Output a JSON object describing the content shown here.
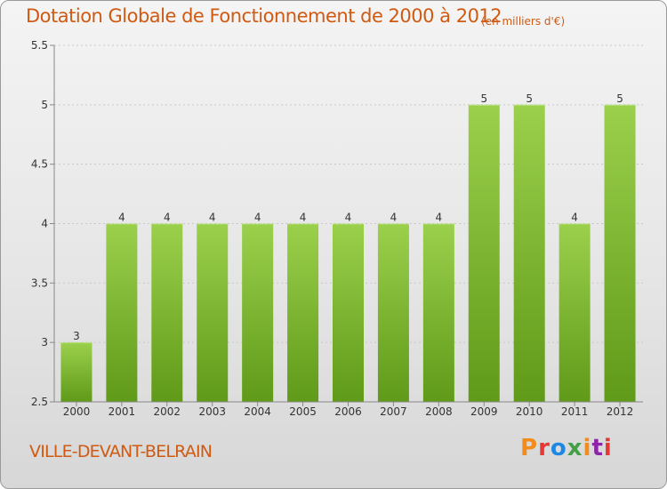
{
  "header": {
    "title": "Dotation Globale de Fonctionnement de 2000 à 2012",
    "unit": "(en milliers d'€)"
  },
  "footer": {
    "commune": "VILLE-DEVANT-BELRAIN",
    "logo_text": "Proxiti",
    "logo_colors": [
      "#f28c1d",
      "#e53935",
      "#1e88e5",
      "#43a047",
      "#f28c1d",
      "#8e24aa",
      "#e53935"
    ]
  },
  "chart_data": {
    "type": "bar",
    "categories": [
      "2000",
      "2001",
      "2002",
      "2003",
      "2004",
      "2005",
      "2006",
      "2007",
      "2008",
      "2009",
      "2010",
      "2011",
      "2012"
    ],
    "values": [
      3,
      4,
      4,
      4,
      4,
      4,
      4,
      4,
      4,
      5,
      5,
      4,
      5
    ],
    "data_labels": [
      "3",
      "4",
      "4",
      "4",
      "4",
      "4",
      "4",
      "4",
      "4",
      "5",
      "5",
      "4",
      "5"
    ],
    "y_ticks": [
      "2.5",
      "3",
      "3.5",
      "4",
      "4.5",
      "5",
      "5.5"
    ],
    "ylim": [
      2.5,
      5.5
    ],
    "grid": true,
    "bar_color": "#8cc63f",
    "bar_color_dark": "#5f9a18"
  }
}
